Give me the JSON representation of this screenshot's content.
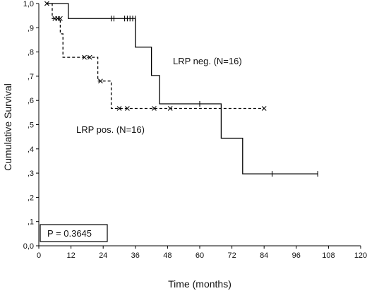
{
  "chart_data": {
    "type": "line",
    "chart_style": "step (Kaplan-Meier)",
    "xlabel": "Time (months)",
    "ylabel": "Cumulative Survival",
    "xlim": [
      0,
      120
    ],
    "ylim": [
      0,
      1
    ],
    "x_ticks": [
      "0",
      "12",
      "24",
      "36",
      "48",
      "60",
      "72",
      "84",
      "96",
      "108",
      "120"
    ],
    "y_ticks": [
      "0,0",
      ",1",
      ",2",
      ",3",
      ",4",
      ",5",
      ",6",
      ",7",
      ",8",
      ",9",
      "1,0"
    ],
    "grid": false,
    "annotation": "P = 0.3645",
    "series": [
      {
        "name": "LRP neg.  (N=16)",
        "line_style": "solid",
        "censor_marker": "|",
        "steps": [
          [
            3,
            1.0
          ],
          [
            11,
            0.938
          ],
          [
            36,
            0.82
          ],
          [
            42,
            0.703
          ],
          [
            45,
            0.586
          ],
          [
            68,
            0.444
          ],
          [
            76,
            0.297
          ],
          [
            104,
            0.297
          ]
        ],
        "censored": [
          [
            27,
            0.938
          ],
          [
            28,
            0.938
          ],
          [
            32,
            0.938
          ],
          [
            33,
            0.938
          ],
          [
            34,
            0.938
          ],
          [
            35,
            0.938
          ],
          [
            36,
            0.938
          ],
          [
            60,
            0.586
          ],
          [
            87,
            0.297
          ],
          [
            104,
            0.297
          ]
        ]
      },
      {
        "name": "LRP pos.  (N=16)",
        "line_style": "dashed",
        "censor_marker": "x",
        "steps": [
          [
            3,
            1.0
          ],
          [
            5,
            0.938
          ],
          [
            8,
            0.875
          ],
          [
            9,
            0.778
          ],
          [
            22,
            0.68
          ],
          [
            27,
            0.567
          ],
          [
            84,
            0.567
          ]
        ],
        "censored": [
          [
            3,
            1.0
          ],
          [
            6,
            0.938
          ],
          [
            7,
            0.938
          ],
          [
            8,
            0.938
          ],
          [
            17,
            0.778
          ],
          [
            19,
            0.778
          ],
          [
            23,
            0.68
          ],
          [
            30,
            0.567
          ],
          [
            33,
            0.567
          ],
          [
            43,
            0.567
          ],
          [
            49,
            0.567
          ],
          [
            84,
            0.567
          ]
        ]
      }
    ]
  }
}
